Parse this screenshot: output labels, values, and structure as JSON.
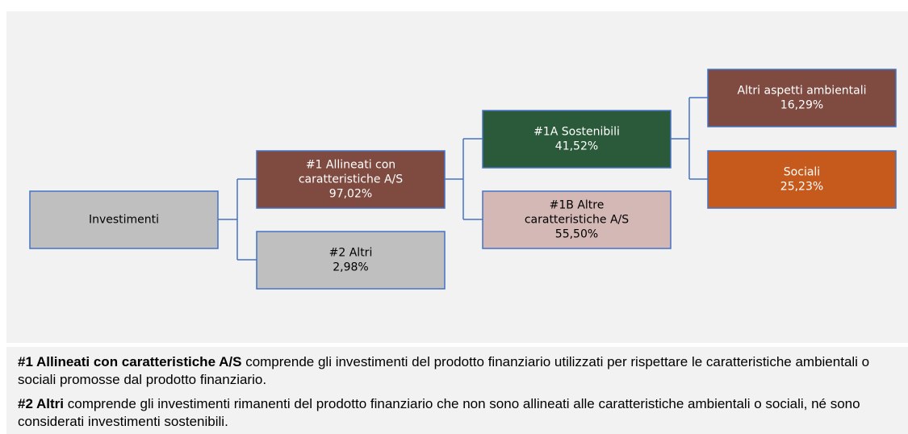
{
  "nodes": [
    {
      "lines": [
        "Investimenti"
      ]
    },
    {
      "lines": [
        "#1 Allineati con",
        "caratteristiche A/S"
      ],
      "value": "97,02%"
    },
    {
      "lines": [
        "#2 Altri"
      ],
      "value": "2,98%"
    },
    {
      "lines": [
        "#1A Sostenibili"
      ],
      "value": "41,52%"
    },
    {
      "lines": [
        "#1B Altre",
        "caratteristiche A/S"
      ],
      "value": "55,50%"
    },
    {
      "lines": [
        "Altri aspetti ambientali"
      ],
      "value": "16,29%"
    },
    {
      "lines": [
        "Sociali"
      ],
      "value": "25,23%"
    }
  ],
  "notes": [
    {
      "term": "#1 Allineati con caratteristiche A/S",
      "text": " comprende gli investimenti del prodotto finanziario utilizzati per rispettare le caratteristiche ambientali o sociali promosse dal prodotto finanziario."
    },
    {
      "term": "#2 Altri",
      "text": " comprende gli investimenti rimanenti del prodotto finanziario che non sono allineati alle caratteristiche ambientali o sociali, né sono considerati investimenti sostenibili."
    }
  ]
}
